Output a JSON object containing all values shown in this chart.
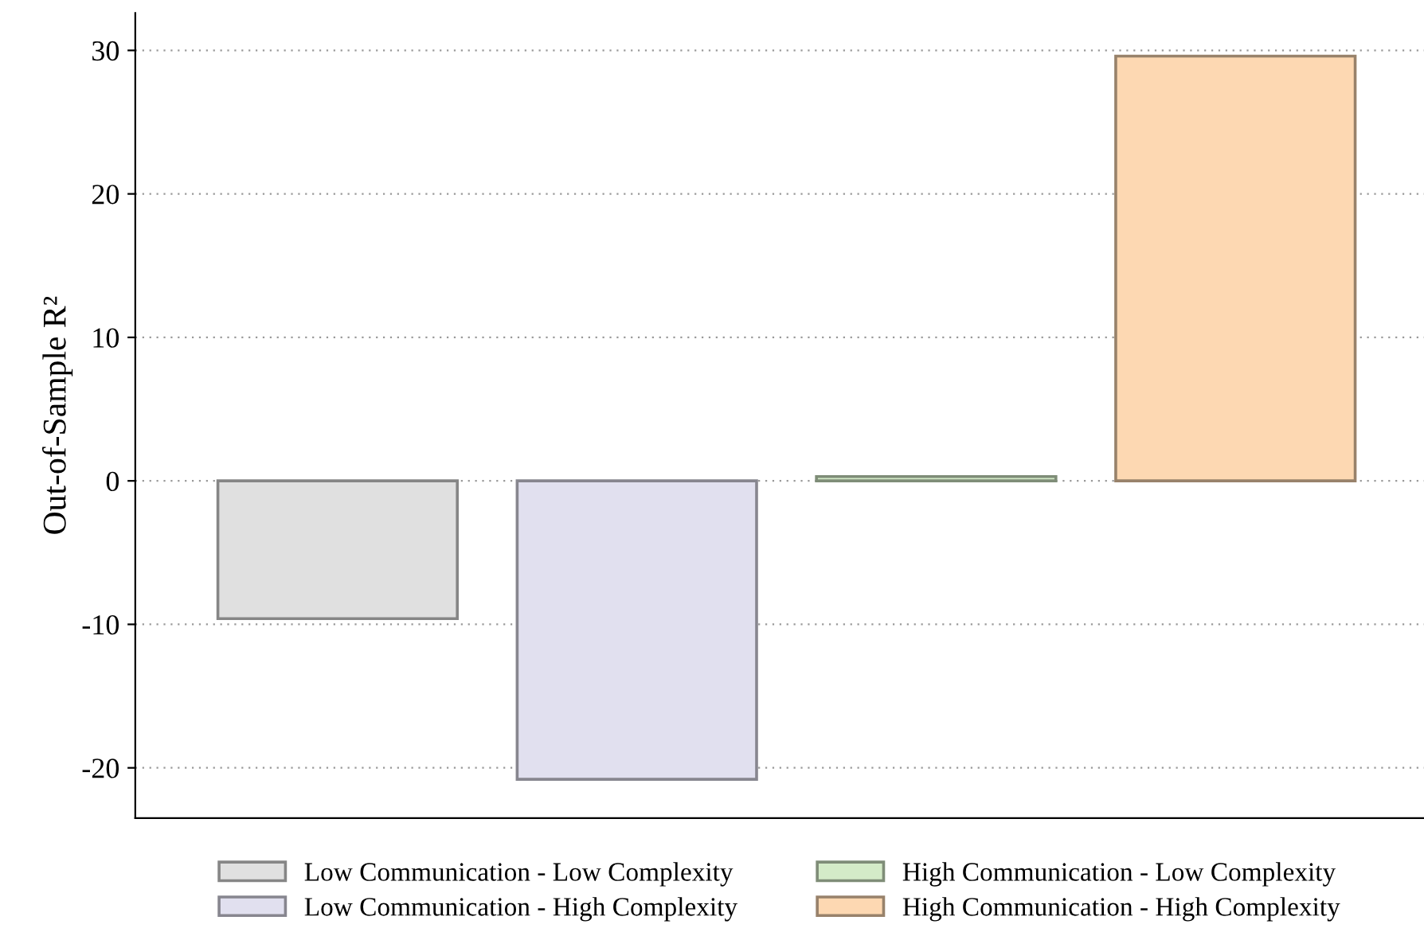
{
  "chart_data": {
    "type": "bar",
    "ylabel": "Out-of-Sample R²",
    "categories": [
      null,
      null,
      null,
      null
    ],
    "series": [
      {
        "name": "Low Communication - Low Complexity",
        "color": "#e0e0e0",
        "values": [
          -9.6,
          null,
          null,
          null
        ]
      },
      {
        "name": "Low Communication - High Complexity",
        "color": "#e1e0ef",
        "values": [
          null,
          -20.8,
          null,
          null
        ]
      },
      {
        "name": "High Communication - Low Complexity",
        "color": "#d4ebc8",
        "values": [
          null,
          null,
          0.3,
          null
        ]
      },
      {
        "name": "High Communication - High Complexity",
        "color": "#fdd8b2",
        "values": [
          null,
          null,
          null,
          29.6
        ]
      }
    ],
    "ylim": [
      -23.5,
      32.6
    ],
    "yticks": [
      {
        "value": -20,
        "label": "-20"
      },
      {
        "value": -10,
        "label": "-10"
      },
      0,
      10,
      20,
      30
    ],
    "grid": "y",
    "legend": "bottom"
  }
}
